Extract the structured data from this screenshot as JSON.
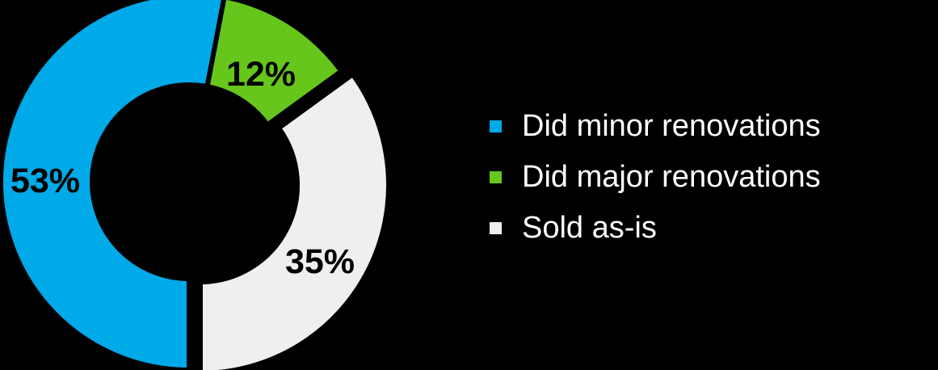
{
  "chart_data": {
    "type": "pie",
    "variant": "donut",
    "categories": [
      "Did minor renovations",
      "Did major renovations",
      "Sold as-is"
    ],
    "values": [
      53,
      12,
      35
    ],
    "labels": [
      "53%",
      "12%",
      "35%"
    ],
    "colors": [
      "#00A9E8",
      "#66C61C",
      "#EFEFEF"
    ],
    "label_colors": [
      "#000000",
      "#000000",
      "#000000"
    ],
    "exploded_slice": "Sold as-is",
    "legend_position": "right",
    "title": ""
  }
}
